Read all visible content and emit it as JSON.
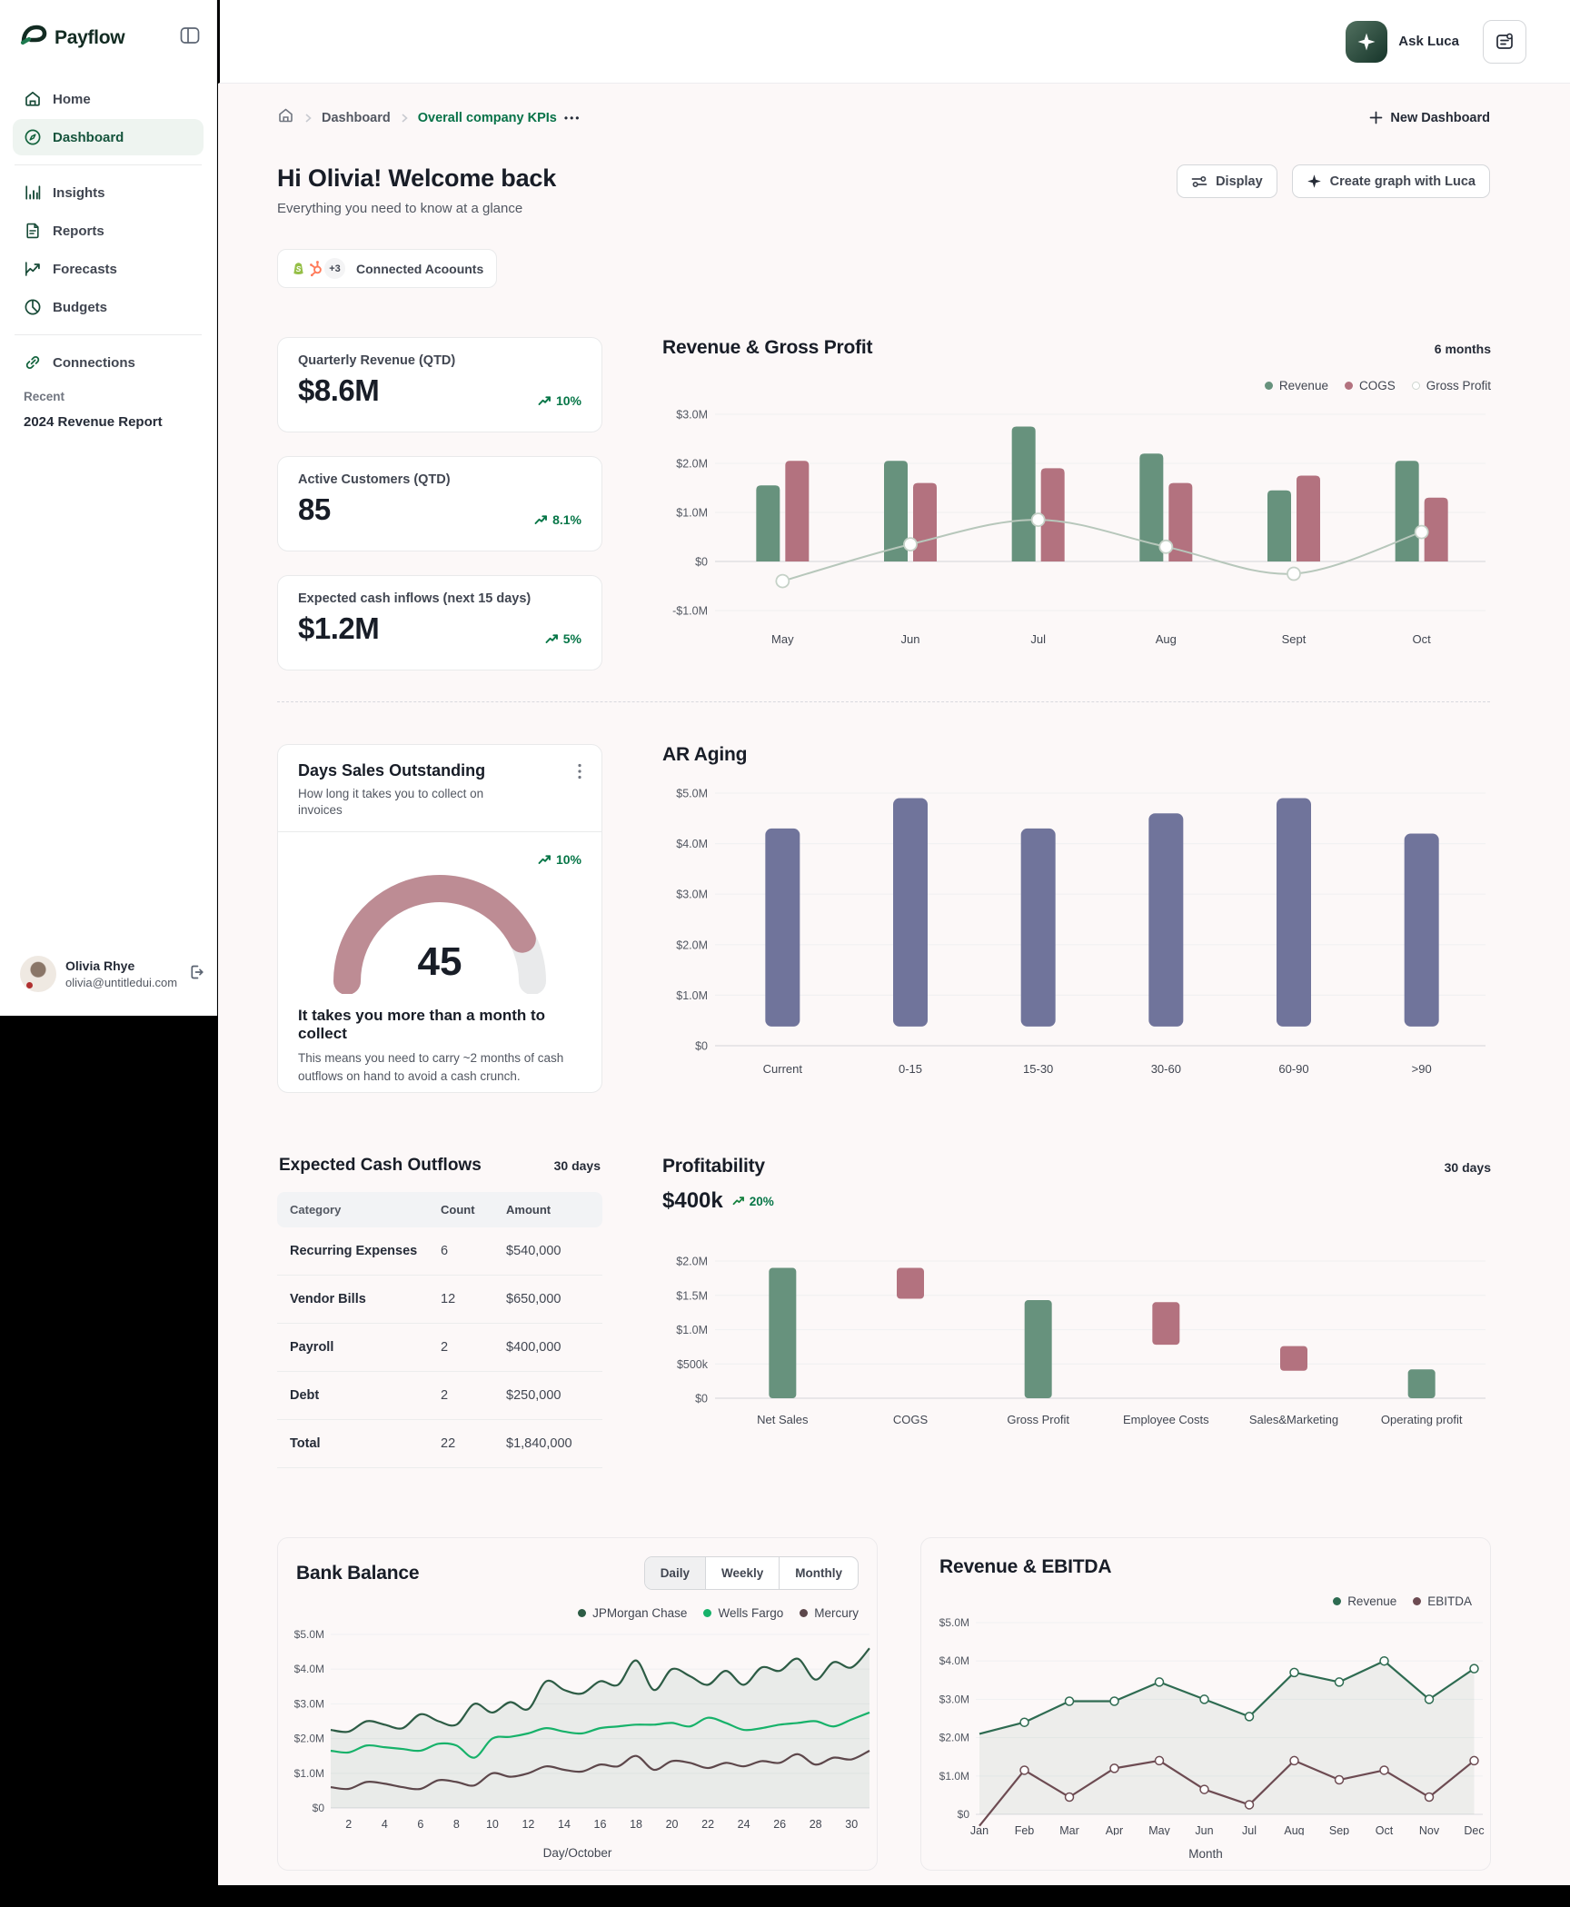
{
  "colors": {
    "accent_green": "#067647",
    "brand": "#122b22",
    "green_bar": "#67927d",
    "rose_bar": "#b3727f",
    "slate_bar": "#70749b",
    "sage_line": "#b7c7bb",
    "gauge_rose": "#bd8c94",
    "gauge_track": "#e9eaeb",
    "jpm": "#2d5c45",
    "wells": "#17b26a",
    "mercury": "#5d474b",
    "revenue_line": "#2e6b51",
    "ebitda_line": "#6d4b52",
    "grid": "#f1f1f2",
    "grid_zero": "#dcdcdf",
    "tick_text": "#535862"
  },
  "sidebar": {
    "logo": "Payflow",
    "items": [
      {
        "id": "home",
        "label": "Home",
        "icon": "home"
      },
      {
        "id": "dashboard",
        "label": "Dashboard",
        "icon": "dashboard",
        "active": true
      },
      {
        "divider": true
      },
      {
        "id": "insights",
        "label": "Insights",
        "icon": "insights"
      },
      {
        "id": "reports",
        "label": "Reports",
        "icon": "reports"
      },
      {
        "id": "forecasts",
        "label": "Forecasts",
        "icon": "forecasts"
      },
      {
        "id": "budgets",
        "label": "Budgets",
        "icon": "budgets"
      },
      {
        "divider": true
      },
      {
        "id": "connections",
        "label": "Connections",
        "icon": "connections"
      }
    ],
    "recent_label": "Recent",
    "recent_item": "2024 Revenue Report",
    "profile": {
      "name": "Olivia Rhye",
      "email": "olivia@untitledui.com"
    }
  },
  "topbar": {
    "ask_luca": "Ask Luca"
  },
  "breadcrumb": {
    "first": "Dashboard",
    "current": "Overall company KPIs",
    "dots": "•••",
    "new_dashboard": "New Dashboard"
  },
  "header": {
    "title": "Hi Olivia! Welcome back",
    "subtitle": "Everything you need to know at a glance",
    "display_label": "Display",
    "create_label": "Create graph with Luca",
    "connected_label": "Connected Acoounts",
    "connected_more": "+3"
  },
  "kpis": [
    {
      "label": "Quarterly Revenue (QTD)",
      "value": "$8.6M",
      "trend": "10%"
    },
    {
      "label": "Active Customers (QTD)",
      "value": "85",
      "trend": "8.1%"
    },
    {
      "label": "Expected cash inflows (next 15 days)",
      "value": "$1.2M",
      "trend": "5%"
    }
  ],
  "chart_data": {
    "revenue_gross_profit": {
      "type": "bar",
      "title": "Revenue & Gross Profit",
      "period": "6 months",
      "categories": [
        "May",
        "Jun",
        "Jul",
        "Aug",
        "Sept",
        "Oct"
      ],
      "series": [
        {
          "name": "Revenue",
          "kind": "bar",
          "values": [
            1.55,
            2.05,
            2.75,
            2.2,
            1.45,
            2.05
          ]
        },
        {
          "name": "COGS",
          "kind": "bar",
          "values": [
            2.05,
            1.6,
            1.9,
            1.6,
            1.75,
            1.3
          ]
        },
        {
          "name": "Gross Profit",
          "kind": "line",
          "values": [
            -0.4,
            0.35,
            0.85,
            0.3,
            -0.25,
            0.6
          ]
        }
      ],
      "ylim": [
        -1.0,
        3.0
      ],
      "yticks": [
        [
          3,
          "$3.0M"
        ],
        [
          2,
          "$2.0M"
        ],
        [
          1,
          "$1.0M"
        ],
        [
          0,
          "$0"
        ],
        [
          -1,
          "-$1.0M"
        ]
      ]
    },
    "dso": {
      "title": "Days Sales Outstanding",
      "subtitle": "How long it takes you to collect on invoices",
      "value": "45",
      "trend": "10%",
      "fraction": 0.85,
      "headline": "It takes you more than a month to collect",
      "body": "This means you need to carry ~2 months of cash outflows on hand to avoid a cash crunch."
    },
    "ar_aging": {
      "type": "bar",
      "title": "AR Aging",
      "categories": [
        "Current",
        "0-15",
        "15-30",
        "30-60",
        "60-90",
        ">90"
      ],
      "values": [
        4.3,
        4.9,
        4.3,
        4.6,
        4.9,
        4.2
      ],
      "ylim": [
        0,
        5
      ],
      "yticks": [
        [
          5,
          "$5.0M"
        ],
        [
          4,
          "$4.0M"
        ],
        [
          3,
          "$3.0M"
        ],
        [
          2,
          "$2.0M"
        ],
        [
          1,
          "$1.0M"
        ],
        [
          0,
          "$0"
        ]
      ]
    },
    "outflows": {
      "type": "table",
      "title": "Expected Cash Outflows",
      "period": "30 days",
      "columns": [
        "Category",
        "Count",
        "Amount"
      ],
      "rows": [
        [
          "Recurring Expenses",
          "6",
          "$540,000"
        ],
        [
          "Vendor Bills",
          "12",
          "$650,000"
        ],
        [
          "Payroll",
          "2",
          "$400,000"
        ],
        [
          "Debt",
          "2",
          "$250,000"
        ],
        [
          "Total",
          "22",
          "$1,840,000"
        ]
      ]
    },
    "profitability": {
      "type": "waterfall",
      "title": "Profitability",
      "period": "30 days",
      "amount": "$400k",
      "trend": "20%",
      "bars": [
        {
          "label": "Net Sales",
          "start": 0,
          "end": 1.9,
          "kind": "green"
        },
        {
          "label": "COGS",
          "start": 1.45,
          "end": 1.9,
          "kind": "rose"
        },
        {
          "label": "Gross Profit",
          "start": 0,
          "end": 1.43,
          "kind": "green"
        },
        {
          "label": "Employee Costs",
          "start": 0.78,
          "end": 1.4,
          "kind": "rose"
        },
        {
          "label": "Sales&Marketing",
          "start": 0.4,
          "end": 0.76,
          "kind": "rose"
        },
        {
          "label": "Operating profit",
          "start": 0,
          "end": 0.42,
          "kind": "green"
        }
      ],
      "yticks": [
        [
          2,
          "$2.0M"
        ],
        [
          1.5,
          "$1.5M"
        ],
        [
          1,
          "$1.0M"
        ],
        [
          0.5,
          "$500k"
        ],
        [
          0,
          "$0"
        ]
      ]
    },
    "bank_balance": {
      "type": "line",
      "title": "Bank Balance",
      "tabs": [
        "Daily",
        "Weekly",
        "Monthly"
      ],
      "active_tab": "Daily",
      "xlabel": "Day/October",
      "xticks": [
        2,
        4,
        6,
        8,
        10,
        12,
        14,
        16,
        18,
        20,
        22,
        24,
        26,
        28,
        30
      ],
      "yticks": [
        [
          5,
          "$5.0M"
        ],
        [
          4,
          "$4.0M"
        ],
        [
          3,
          "$3.0M"
        ],
        [
          2,
          "$2.0M"
        ],
        [
          1,
          "$1.0M"
        ],
        [
          0,
          "$0"
        ]
      ],
      "series": [
        {
          "name": "JPMorgan Chase",
          "color": "#2d5c45",
          "fill": true,
          "values": [
            2.25,
            2.2,
            2.5,
            2.4,
            2.3,
            2.7,
            2.5,
            2.4,
            3.0,
            2.75,
            3.05,
            2.85,
            3.65,
            3.4,
            3.3,
            3.65,
            3.55,
            4.25,
            3.4,
            4.0,
            3.8,
            3.55,
            3.95,
            3.55,
            4.05,
            3.95,
            4.3,
            3.7,
            4.2,
            4.05,
            4.6
          ]
        },
        {
          "name": "Wells Fargo",
          "color": "#17b26a",
          "fill": false,
          "values": [
            1.65,
            1.6,
            1.8,
            1.75,
            1.7,
            1.65,
            1.85,
            1.8,
            1.45,
            2.0,
            2.05,
            2.15,
            2.3,
            2.2,
            2.15,
            2.3,
            2.35,
            2.4,
            2.4,
            2.45,
            2.35,
            2.6,
            2.45,
            2.25,
            2.3,
            2.4,
            2.45,
            2.5,
            2.35,
            2.55,
            2.75
          ]
        },
        {
          "name": "Mercury",
          "color": "#5d474b",
          "fill": false,
          "values": [
            0.6,
            0.55,
            0.75,
            0.7,
            0.6,
            0.55,
            0.8,
            0.75,
            0.65,
            1.0,
            0.9,
            1.0,
            1.2,
            1.1,
            1.05,
            1.25,
            1.2,
            1.5,
            1.1,
            1.35,
            1.3,
            1.15,
            1.3,
            1.2,
            1.35,
            1.3,
            1.55,
            1.25,
            1.45,
            1.4,
            1.65
          ]
        }
      ]
    },
    "rev_ebitda": {
      "type": "line",
      "title": "Revenue & EBITDA",
      "xlabel": "Month",
      "months": [
        "Jan",
        "Feb",
        "Mar",
        "Apr",
        "May",
        "Jun",
        "Jul",
        "Aug",
        "Sep",
        "Oct",
        "Nov",
        "Dec"
      ],
      "yticks": [
        [
          5,
          "$5.0M"
        ],
        [
          4,
          "$4.0M"
        ],
        [
          3,
          "$3.0M"
        ],
        [
          2,
          "$2.0M"
        ],
        [
          1,
          "$1.0M"
        ],
        [
          0,
          "$0"
        ]
      ],
      "series": [
        {
          "name": "Revenue",
          "color": "#2e6b51",
          "fill": true,
          "values": [
            2.1,
            2.4,
            2.95,
            2.95,
            3.45,
            3.0,
            2.55,
            3.7,
            3.45,
            4.0,
            3.0,
            3.8
          ]
        },
        {
          "name": "EBITDA",
          "color": "#6d4b52",
          "fill": false,
          "values": [
            -0.3,
            1.15,
            0.45,
            1.2,
            1.4,
            0.65,
            0.25,
            1.4,
            0.9,
            1.15,
            0.45,
            1.4
          ]
        }
      ]
    }
  }
}
